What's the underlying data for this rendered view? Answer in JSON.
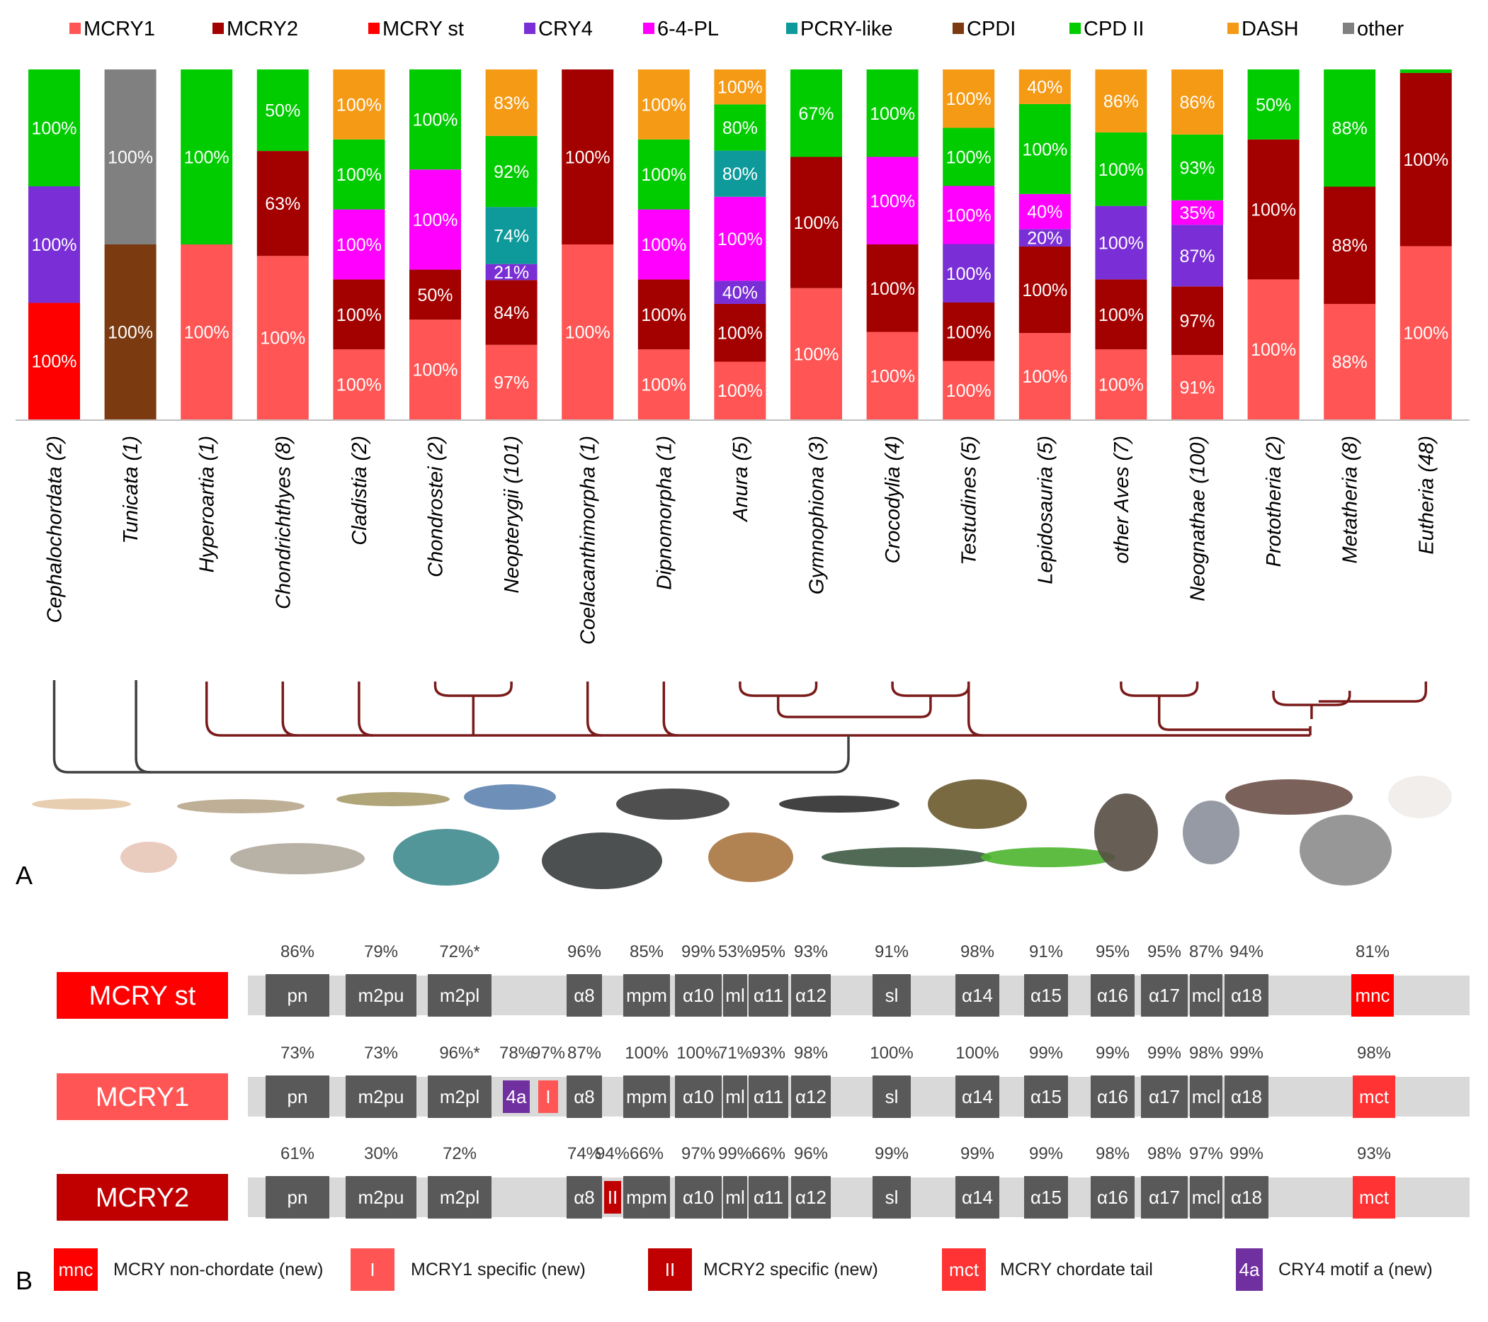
{
  "chart_data": [
    {
      "type": "bar",
      "stacked": true,
      "panel_label": "A",
      "ylim": [
        0,
        1
      ],
      "legend_position": "top",
      "legend": [
        {
          "name": "MCRY1",
          "color": "#ff5555"
        },
        {
          "name": "MCRY2",
          "color": "#a30000"
        },
        {
          "name": "MCRY st",
          "color": "#ff0000"
        },
        {
          "name": "CRY4",
          "color": "#7a2fd6"
        },
        {
          "name": "6-4-PL",
          "color": "#ff00ff"
        },
        {
          "name": "PCRY-like",
          "color": "#0e9a9a"
        },
        {
          "name": "CPDI",
          "color": "#7b3a10"
        },
        {
          "name": "CPD II",
          "color": "#00cc00"
        },
        {
          "name": "DASH",
          "color": "#f59a15"
        },
        {
          "name": "other",
          "color": "#808080"
        }
      ],
      "categories": [
        "Cephalochordata (2)",
        "Tunicata (1)",
        "Hyperoartia (1)",
        "Chondrichthyes (8)",
        "Cladistia (2)",
        "Chondrostei (2)",
        "Neopterygii (101)",
        "Coelacanthimorpha (1)",
        "Dipnomorpha (1)",
        "Anura (5)",
        "Gymnophiona (3)",
        "Crocodylia (4)",
        "Testudines (5)",
        "Lepidosauria (5)",
        "other Aves (7)",
        "Neognathae (100)",
        "Prototheria (2)",
        "Metatheria (8)",
        "Eutheria (48)"
      ],
      "stacks": [
        [
          {
            "s": "MCRY st",
            "v": "100%",
            "f": 0.333
          },
          {
            "s": "CRY4",
            "v": "100%",
            "f": 0.333
          },
          {
            "s": "CPD II",
            "v": "100%",
            "f": 0.334
          }
        ],
        [
          {
            "s": "CPDI",
            "v": "100%",
            "f": 0.5
          },
          {
            "s": "other",
            "v": "100%",
            "f": 0.5
          }
        ],
        [
          {
            "s": "MCRY1",
            "v": "100%",
            "f": 0.5
          },
          {
            "s": "CPD II",
            "v": "100%",
            "f": 0.5
          }
        ],
        [
          {
            "s": "MCRY1",
            "v": "100%",
            "f": 0.467
          },
          {
            "s": "MCRY2",
            "v": "63%",
            "f": 0.3
          },
          {
            "s": "CPD II",
            "v": "50%",
            "f": 0.233
          }
        ],
        [
          {
            "s": "MCRY1",
            "v": "100%",
            "f": 0.2
          },
          {
            "s": "MCRY2",
            "v": "100%",
            "f": 0.2
          },
          {
            "s": "6-4-PL",
            "v": "100%",
            "f": 0.2
          },
          {
            "s": "CPD II",
            "v": "100%",
            "f": 0.2
          },
          {
            "s": "DASH",
            "v": "100%",
            "f": 0.2
          }
        ],
        [
          {
            "s": "MCRY1",
            "v": "100%",
            "f": 0.285
          },
          {
            "s": "MCRY2",
            "v": "50%",
            "f": 0.143
          },
          {
            "s": "6-4-PL",
            "v": "100%",
            "f": 0.286
          },
          {
            "s": "CPD II",
            "v": "100%",
            "f": 0.286
          }
        ],
        [
          {
            "s": "MCRY1",
            "v": "97%",
            "f": 0.213
          },
          {
            "s": "MCRY2",
            "v": "84%",
            "f": 0.185
          },
          {
            "s": "CRY4",
            "v": "21%",
            "f": 0.046
          },
          {
            "s": "PCRY-like",
            "v": "74%",
            "f": 0.163
          },
          {
            "s": "CPD II",
            "v": "92%",
            "f": 0.203
          },
          {
            "s": "DASH",
            "v": "83%",
            "f": 0.19
          }
        ],
        [
          {
            "s": "MCRY1",
            "v": "100%",
            "f": 0.5
          },
          {
            "s": "MCRY2",
            "v": "100%",
            "f": 0.5
          }
        ],
        [
          {
            "s": "MCRY1",
            "v": "100%",
            "f": 0.2
          },
          {
            "s": "MCRY2",
            "v": "100%",
            "f": 0.2
          },
          {
            "s": "6-4-PL",
            "v": "100%",
            "f": 0.2
          },
          {
            "s": "CPD II",
            "v": "100%",
            "f": 0.2
          },
          {
            "s": "DASH",
            "v": "100%",
            "f": 0.2
          }
        ],
        [
          {
            "s": "MCRY1",
            "v": "100%",
            "f": 0.165
          },
          {
            "s": "MCRY2",
            "v": "100%",
            "f": 0.165
          },
          {
            "s": "CRY4",
            "v": "40%",
            "f": 0.066
          },
          {
            "s": "6-4-PL",
            "v": "100%",
            "f": 0.24
          },
          {
            "s": "PCRY-like",
            "v": "80%",
            "f": 0.132
          },
          {
            "s": "CPD II",
            "v": "80%",
            "f": 0.132
          },
          {
            "s": "DASH",
            "v": "100%",
            "f": 0.1
          }
        ],
        [
          {
            "s": "MCRY1",
            "v": "100%",
            "f": 0.375
          },
          {
            "s": "MCRY2",
            "v": "100%",
            "f": 0.375
          },
          {
            "s": "CPD II",
            "v": "67%",
            "f": 0.25
          }
        ],
        [
          {
            "s": "MCRY1",
            "v": "100%",
            "f": 0.25
          },
          {
            "s": "MCRY2",
            "v": "100%",
            "f": 0.25
          },
          {
            "s": "6-4-PL",
            "v": "100%",
            "f": 0.25
          },
          {
            "s": "CPD II",
            "v": "100%",
            "f": 0.25
          }
        ],
        [
          {
            "s": "MCRY1",
            "v": "100%",
            "f": 0.167
          },
          {
            "s": "MCRY2",
            "v": "100%",
            "f": 0.167
          },
          {
            "s": "CRY4",
            "v": "100%",
            "f": 0.167
          },
          {
            "s": "6-4-PL",
            "v": "100%",
            "f": 0.166
          },
          {
            "s": "CPD II",
            "v": "100%",
            "f": 0.166
          },
          {
            "s": "DASH",
            "v": "100%",
            "f": 0.167
          }
        ],
        [
          {
            "s": "MCRY1",
            "v": "100%",
            "f": 0.247
          },
          {
            "s": "MCRY2",
            "v": "100%",
            "f": 0.247
          },
          {
            "s": "CRY4",
            "v": "20%",
            "f": 0.05
          },
          {
            "s": "6-4-PL",
            "v": "40%",
            "f": 0.1
          },
          {
            "s": "CPD II",
            "v": "100%",
            "f": 0.257
          },
          {
            "s": "DASH",
            "v": "40%",
            "f": 0.099
          }
        ],
        [
          {
            "s": "MCRY1",
            "v": "100%",
            "f": 0.2
          },
          {
            "s": "MCRY2",
            "v": "100%",
            "f": 0.2
          },
          {
            "s": "CRY4",
            "v": "100%",
            "f": 0.21
          },
          {
            "s": "CPD II",
            "v": "100%",
            "f": 0.21
          },
          {
            "s": "DASH",
            "v": "86%",
            "f": 0.18
          }
        ],
        [
          {
            "s": "MCRY1",
            "v": "91%",
            "f": 0.184
          },
          {
            "s": "MCRY2",
            "v": "97%",
            "f": 0.196
          },
          {
            "s": "CRY4",
            "v": "87%",
            "f": 0.176
          },
          {
            "s": "6-4-PL",
            "v": "35%",
            "f": 0.07
          },
          {
            "s": "CPD II",
            "v": "93%",
            "f": 0.188
          },
          {
            "s": "DASH",
            "v": "86%",
            "f": 0.186
          }
        ],
        [
          {
            "s": "MCRY1",
            "v": "100%",
            "f": 0.4
          },
          {
            "s": "MCRY2",
            "v": "100%",
            "f": 0.4
          },
          {
            "s": "CPD II",
            "v": "50%",
            "f": 0.2
          }
        ],
        [
          {
            "s": "MCRY1",
            "v": "88%",
            "f": 0.33
          },
          {
            "s": "MCRY2",
            "v": "88%",
            "f": 0.335
          },
          {
            "s": "CPD II",
            "v": "88%",
            "f": 0.335
          }
        ],
        [
          {
            "s": "MCRY1",
            "v": "100%",
            "f": 0.495
          },
          {
            "s": "MCRY2",
            "v": "100%",
            "f": 0.495
          },
          {
            "s": "CPD II",
            "v": "",
            "f": 0.01
          }
        ]
      ]
    },
    {
      "type": "domain-map",
      "panel_label": "B",
      "rows": [
        {
          "name": "MCRY st",
          "color": "#ff0000",
          "domains": [
            {
              "label": "pn",
              "pct": "86%",
              "kind": "dark"
            },
            {
              "label": "m2pu",
              "pct": "79%",
              "kind": "dark"
            },
            {
              "label": "m2pl",
              "pct": "72%*",
              "kind": "dark"
            },
            {
              "label": "α8",
              "pct": "96%",
              "kind": "dark"
            },
            {
              "label": "mpm",
              "pct": "85%",
              "kind": "dark"
            },
            {
              "label": "α10",
              "pct": "99%",
              "kind": "dark"
            },
            {
              "label": "ml",
              "pct": "53%",
              "kind": "dark"
            },
            {
              "label": "α11",
              "pct": "95%",
              "kind": "dark"
            },
            {
              "label": "α12",
              "pct": "93%",
              "kind": "dark"
            },
            {
              "label": "sl",
              "pct": "91%",
              "kind": "dark"
            },
            {
              "label": "α14",
              "pct": "98%",
              "kind": "dark"
            },
            {
              "label": "α15",
              "pct": "91%",
              "kind": "dark"
            },
            {
              "label": "α16",
              "pct": "95%",
              "kind": "dark"
            },
            {
              "label": "α17",
              "pct": "95%",
              "kind": "dark"
            },
            {
              "label": "mcl",
              "pct": "87%",
              "kind": "dark"
            },
            {
              "label": "α18",
              "pct": "94%",
              "kind": "dark"
            },
            {
              "label": "mnc",
              "pct": "81%",
              "kind": "mnc"
            }
          ]
        },
        {
          "name": "MCRY1",
          "color": "#ff5555",
          "domains": [
            {
              "label": "pn",
              "pct": "73%",
              "kind": "dark"
            },
            {
              "label": "m2pu",
              "pct": "73%",
              "kind": "dark"
            },
            {
              "label": "m2pl",
              "pct": "96%*",
              "kind": "dark"
            },
            {
              "label": "4a",
              "pct": "78%",
              "kind": "cry4"
            },
            {
              "label": "I",
              "pct": "97%",
              "kind": "m1"
            },
            {
              "label": "α8",
              "pct": "87%",
              "kind": "dark"
            },
            {
              "label": "mpm",
              "pct": "100%",
              "kind": "dark"
            },
            {
              "label": "α10",
              "pct": "100%",
              "kind": "dark"
            },
            {
              "label": "ml",
              "pct": "71%",
              "kind": "dark"
            },
            {
              "label": "α11",
              "pct": "93%",
              "kind": "dark"
            },
            {
              "label": "α12",
              "pct": "98%",
              "kind": "dark"
            },
            {
              "label": "sl",
              "pct": "100%",
              "kind": "dark"
            },
            {
              "label": "α14",
              "pct": "100%",
              "kind": "dark"
            },
            {
              "label": "α15",
              "pct": "99%",
              "kind": "dark"
            },
            {
              "label": "α16",
              "pct": "99%",
              "kind": "dark"
            },
            {
              "label": "α17",
              "pct": "99%",
              "kind": "dark"
            },
            {
              "label": "mcl",
              "pct": "98%",
              "kind": "dark"
            },
            {
              "label": "α18",
              "pct": "99%",
              "kind": "dark"
            },
            {
              "label": "mct",
              "pct": "98%",
              "kind": "mct"
            }
          ]
        },
        {
          "name": "MCRY2",
          "color": "#c00000",
          "domains": [
            {
              "label": "pn",
              "pct": "61%",
              "kind": "dark"
            },
            {
              "label": "m2pu",
              "pct": "30%",
              "kind": "dark"
            },
            {
              "label": "m2pl",
              "pct": "72%",
              "kind": "dark"
            },
            {
              "label": "α8",
              "pct": "74%",
              "kind": "dark"
            },
            {
              "label": "II",
              "pct": "94%",
              "kind": "m2"
            },
            {
              "label": "mpm",
              "pct": "66%",
              "kind": "dark"
            },
            {
              "label": "α10",
              "pct": "97%",
              "kind": "dark"
            },
            {
              "label": "ml",
              "pct": "99%",
              "kind": "dark"
            },
            {
              "label": "α11",
              "pct": "66%",
              "kind": "dark"
            },
            {
              "label": "α12",
              "pct": "96%",
              "kind": "dark"
            },
            {
              "label": "sl",
              "pct": "99%",
              "kind": "dark"
            },
            {
              "label": "α14",
              "pct": "99%",
              "kind": "dark"
            },
            {
              "label": "α15",
              "pct": "99%",
              "kind": "dark"
            },
            {
              "label": "α16",
              "pct": "98%",
              "kind": "dark"
            },
            {
              "label": "α17",
              "pct": "98%",
              "kind": "dark"
            },
            {
              "label": "mcl",
              "pct": "97%",
              "kind": "dark"
            },
            {
              "label": "α18",
              "pct": "99%",
              "kind": "dark"
            },
            {
              "label": "mct",
              "pct": "93%",
              "kind": "mct"
            }
          ]
        }
      ],
      "legend": [
        {
          "box": "mnc",
          "text": "MCRY non-chordate (new)",
          "color": "#ff0000"
        },
        {
          "box": "I",
          "text": "MCRY1 specific (new)",
          "color": "#ff5555"
        },
        {
          "box": "II",
          "text": "MCRY2 specific (new)",
          "color": "#c00000"
        },
        {
          "box": "mct",
          "text": "MCRY chordate tail",
          "color": "#ff3333"
        },
        {
          "box": "4a",
          "text": "CRY4 motif a (new)",
          "color": "#7030a0"
        }
      ]
    }
  ],
  "colors": {
    "domain_dark": "#595959",
    "track": "#d9d9d9",
    "tree_chordate": "#404040",
    "tree_vertebrate": "#7a1a1a"
  }
}
